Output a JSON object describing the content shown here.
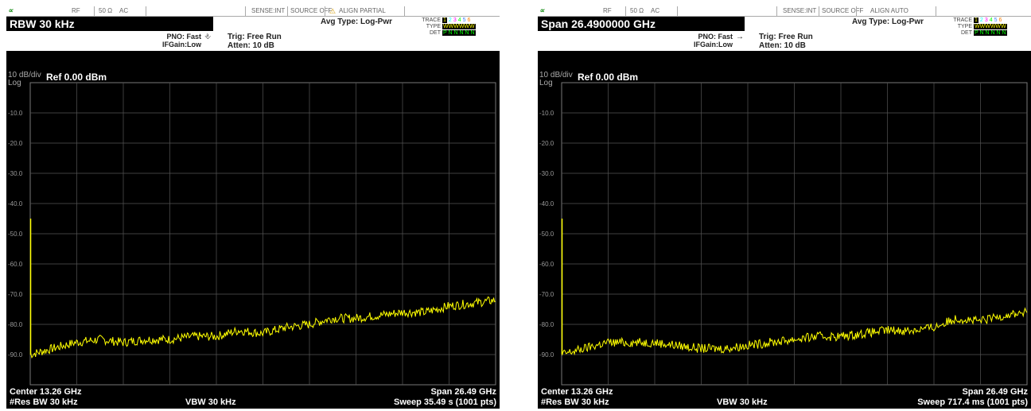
{
  "screens": [
    {
      "id": "left",
      "topbar": {
        "rf": "RF",
        "imp": "50 Ω",
        "coupling": "AC",
        "sense": "SENSE:INT",
        "source": "SOURCE OFF",
        "align": "ALIGN PARTIAL",
        "align_warning": true
      },
      "active_param": "RBW 30 kHz",
      "pno": "PNO: Fast",
      "ifgain": "IFGain:Low",
      "trig": "Trig: Free Run",
      "atten": "Atten: 10 dB",
      "avg_type": "Avg Type: Log-Pwr",
      "trace_row": {
        "label": "TRACE",
        "digits": [
          "1",
          "2",
          "3",
          "4",
          "5",
          "6"
        ]
      },
      "type_row": {
        "label": "TYPE",
        "value": "WWWWWW"
      },
      "det_row": {
        "label": "DET",
        "value": "P N N N N N"
      },
      "scale": "10 dB/div",
      "log": "Log",
      "ref": "Ref 0.00 dBm",
      "y_labels": [
        "-10.0",
        "-20.0",
        "-30.0",
        "-40.0",
        "-50.0",
        "-60.0",
        "-70.0",
        "-80.0",
        "-90.0"
      ],
      "center": "Center 13.26 GHz",
      "res_bw": "#Res BW 30 kHz",
      "vbw": "VBW 30 kHz",
      "span": "Span 26.49 GHz",
      "sweep": "Sweep  35.49 s (1001 pts)"
    },
    {
      "id": "right",
      "topbar": {
        "rf": "RF",
        "imp": "50 Ω",
        "coupling": "AC",
        "sense": "SENSE:INT",
        "source": "SOURCE OFF",
        "align": "ALIGN AUTO",
        "align_warning": false
      },
      "active_param": "Span 26.4900000 GHz",
      "pno": "PNO: Fast",
      "ifgain": "IFGain:Low",
      "trig": "Trig: Free Run",
      "atten": "Atten: 10 dB",
      "avg_type": "Avg Type: Log-Pwr",
      "trace_row": {
        "label": "TRACE",
        "digits": [
          "1",
          "2",
          "3",
          "4",
          "5",
          "6"
        ]
      },
      "type_row": {
        "label": "TYPE",
        "value": "WWWWWW"
      },
      "det_row": {
        "label": "DET",
        "value": "P N N N N N"
      },
      "scale": "10 dB/div",
      "log": "Log",
      "ref": "Ref 0.00 dBm",
      "y_labels": [
        "-10.0",
        "-20.0",
        "-30.0",
        "-40.0",
        "-50.0",
        "-60.0",
        "-70.0",
        "-80.0",
        "-90.0"
      ],
      "center": "Center 13.26 GHz",
      "res_bw": "#Res BW 30 kHz",
      "vbw": "VBW 30 kHz",
      "span": "Span 26.49 GHz",
      "sweep": "Sweep  717.4 ms (1001 pts)"
    }
  ],
  "chart_data": [
    {
      "type": "line",
      "xlabel": "",
      "ylabel": "",
      "x_range_ghz": [
        0.015,
        26.505
      ],
      "ylim": [
        -100,
        0
      ],
      "grid": true,
      "series": [
        {
          "color": "#ffff00",
          "x": [
            0.0,
            1.3,
            2.6,
            4.0,
            5.3,
            6.6,
            7.9,
            9.3,
            10.6,
            11.9,
            13.2,
            14.6,
            15.9,
            17.2,
            18.5,
            19.9,
            21.2,
            22.5,
            23.8,
            25.2,
            26.5
          ],
          "values": [
            -90,
            -88,
            -86,
            -85,
            -86,
            -85,
            -85,
            -84,
            -84,
            -82,
            -83,
            -81,
            -80,
            -78,
            -78,
            -77,
            -76,
            -76,
            -74,
            -73,
            -72
          ]
        }
      ]
    },
    {
      "type": "line",
      "xlabel": "",
      "ylabel": "",
      "x_range_ghz": [
        0.015,
        26.505
      ],
      "ylim": [
        -100,
        0
      ],
      "grid": true,
      "series": [
        {
          "color": "#ffff00",
          "x": [
            0.0,
            1.3,
            2.6,
            4.0,
            5.3,
            6.6,
            7.9,
            9.3,
            10.6,
            11.9,
            13.2,
            14.6,
            15.9,
            17.2,
            18.5,
            19.9,
            21.2,
            22.5,
            23.8,
            25.2,
            26.5
          ],
          "values": [
            -90,
            -88,
            -86,
            -86,
            -86,
            -87,
            -88,
            -88,
            -87,
            -86,
            -85,
            -84,
            -84,
            -83,
            -82,
            -82,
            -81,
            -78,
            -79,
            -77,
            -76
          ]
        }
      ]
    }
  ]
}
